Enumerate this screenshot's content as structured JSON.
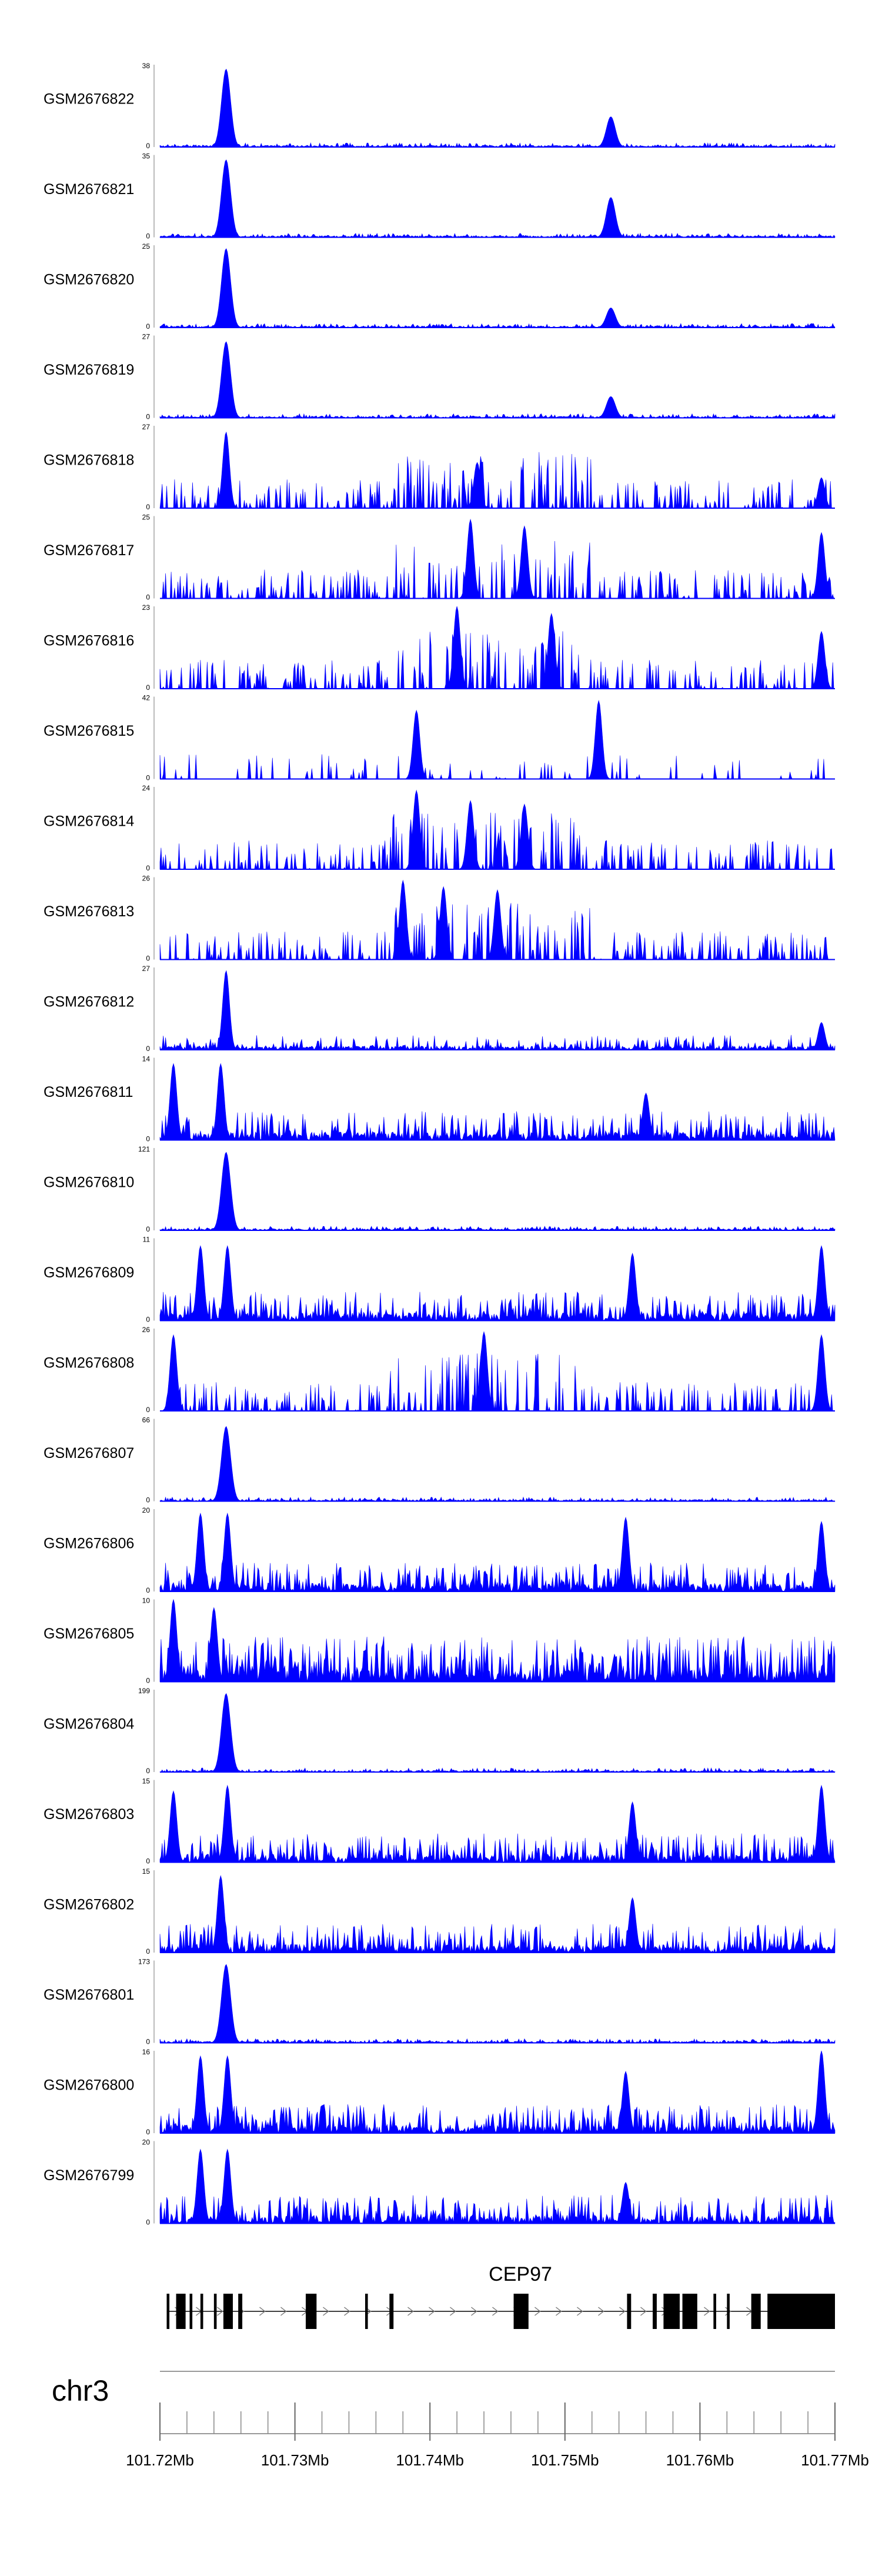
{
  "chart_data": {
    "type": "area",
    "chromosome": "chr3",
    "region_mb": [
      101.72,
      101.77
    ],
    "color": "#0000ff",
    "tracks": [
      {
        "name": "GSM2676822",
        "ymax": 38,
        "ymin": 0,
        "peaks": [
          [
            101.7249,
            36
          ],
          [
            101.7534,
            14
          ]
        ],
        "profile": "sparse_hi"
      },
      {
        "name": "GSM2676821",
        "ymax": 35,
        "ymin": 0,
        "peaks": [
          [
            101.7249,
            33
          ],
          [
            101.7534,
            17
          ]
        ],
        "profile": "sparse_hi"
      },
      {
        "name": "GSM2676820",
        "ymax": 25,
        "ymin": 0,
        "peaks": [
          [
            101.7249,
            24
          ],
          [
            101.7534,
            6
          ]
        ],
        "profile": "sparse_hi"
      },
      {
        "name": "GSM2676819",
        "ymax": 27,
        "ymin": 0,
        "peaks": [
          [
            101.7249,
            25
          ],
          [
            101.7534,
            7
          ]
        ],
        "profile": "sparse_hi"
      },
      {
        "name": "GSM2676818",
        "ymax": 27,
        "ymin": 0,
        "peaks": [
          [
            101.7249,
            25
          ],
          [
            101.7435,
            15
          ],
          [
            101.769,
            10
          ]
        ],
        "profile": "broad"
      },
      {
        "name": "GSM2676817",
        "ymax": 25,
        "ymin": 0,
        "peaks": [
          [
            101.743,
            24
          ],
          [
            101.747,
            22
          ],
          [
            101.769,
            20
          ]
        ],
        "profile": "broad"
      },
      {
        "name": "GSM2676816",
        "ymax": 23,
        "ymin": 0,
        "peaks": [
          [
            101.742,
            23
          ],
          [
            101.749,
            21
          ],
          [
            101.769,
            16
          ]
        ],
        "profile": "broad"
      },
      {
        "name": "GSM2676815",
        "ymax": 42,
        "ymin": 0,
        "peaks": [
          [
            101.739,
            35
          ],
          [
            101.7525,
            40
          ]
        ],
        "profile": "triangles"
      },
      {
        "name": "GSM2676814",
        "ymax": 24,
        "ymin": 0,
        "peaks": [
          [
            101.739,
            23
          ],
          [
            101.743,
            20
          ],
          [
            101.747,
            19
          ]
        ],
        "profile": "broad"
      },
      {
        "name": "GSM2676813",
        "ymax": 26,
        "ymin": 0,
        "peaks": [
          [
            101.738,
            25
          ],
          [
            101.741,
            23
          ],
          [
            101.745,
            22
          ]
        ],
        "profile": "broad"
      },
      {
        "name": "GSM2676812",
        "ymax": 27,
        "ymin": 0,
        "peaks": [
          [
            101.7249,
            26
          ],
          [
            101.769,
            9
          ]
        ],
        "profile": "mid"
      },
      {
        "name": "GSM2676811",
        "ymax": 14,
        "ymin": 0,
        "peaks": [
          [
            101.721,
            13
          ],
          [
            101.7245,
            13
          ],
          [
            101.756,
            8
          ]
        ],
        "profile": "dense"
      },
      {
        "name": "GSM2676810",
        "ymax": 121,
        "ymin": 0,
        "peaks": [
          [
            101.7249,
            115
          ]
        ],
        "profile": "sparse_hi"
      },
      {
        "name": "GSM2676809",
        "ymax": 11,
        "ymin": 0,
        "peaks": [
          [
            101.723,
            10
          ],
          [
            101.725,
            10
          ],
          [
            101.755,
            9
          ],
          [
            101.769,
            10
          ]
        ],
        "profile": "dense"
      },
      {
        "name": "GSM2676808",
        "ymax": 26,
        "ymin": 0,
        "peaks": [
          [
            101.721,
            24
          ],
          [
            101.744,
            25
          ],
          [
            101.769,
            24
          ]
        ],
        "profile": "broad"
      },
      {
        "name": "GSM2676807",
        "ymax": 66,
        "ymin": 0,
        "peaks": [
          [
            101.7249,
            60
          ]
        ],
        "profile": "sparse_hi"
      },
      {
        "name": "GSM2676806",
        "ymax": 20,
        "ymin": 0,
        "peaks": [
          [
            101.723,
            19
          ],
          [
            101.725,
            19
          ],
          [
            101.7545,
            18
          ],
          [
            101.769,
            17
          ]
        ],
        "profile": "dense"
      },
      {
        "name": "GSM2676805",
        "ymax": 10,
        "ymin": 0,
        "peaks": [
          [
            101.721,
            10
          ],
          [
            101.724,
            9
          ]
        ],
        "profile": "dense_uniform"
      },
      {
        "name": "GSM2676804",
        "ymax": 199,
        "ymin": 0,
        "peaks": [
          [
            101.7249,
            190
          ]
        ],
        "profile": "sparse_hi"
      },
      {
        "name": "GSM2676803",
        "ymax": 15,
        "ymin": 0,
        "peaks": [
          [
            101.721,
            13
          ],
          [
            101.725,
            14
          ],
          [
            101.755,
            11
          ],
          [
            101.769,
            14
          ]
        ],
        "profile": "dense"
      },
      {
        "name": "GSM2676802",
        "ymax": 15,
        "ymin": 0,
        "peaks": [
          [
            101.7245,
            14
          ],
          [
            101.755,
            10
          ]
        ],
        "profile": "dense"
      },
      {
        "name": "GSM2676801",
        "ymax": 173,
        "ymin": 0,
        "peaks": [
          [
            101.7249,
            165
          ]
        ],
        "profile": "sparse_hi"
      },
      {
        "name": "GSM2676800",
        "ymax": 16,
        "ymin": 0,
        "peaks": [
          [
            101.723,
            15
          ],
          [
            101.725,
            15
          ],
          [
            101.7545,
            12
          ],
          [
            101.769,
            16
          ]
        ],
        "profile": "dense"
      },
      {
        "name": "GSM2676799",
        "ymax": 20,
        "ymin": 0,
        "peaks": [
          [
            101.723,
            18
          ],
          [
            101.725,
            18
          ],
          [
            101.7545,
            10
          ]
        ],
        "profile": "dense"
      }
    ],
    "gene": {
      "name": "CEP97",
      "strand": "+",
      "start_mb": 101.7205,
      "end_mb": 101.77,
      "exons": [
        [
          101.7205,
          101.7207
        ],
        [
          101.7212,
          101.7219
        ],
        [
          101.7222,
          101.7224
        ],
        [
          101.723,
          101.7232
        ],
        [
          101.724,
          101.7242
        ],
        [
          101.7247,
          101.7254
        ],
        [
          101.7258,
          101.7261
        ],
        [
          101.7308,
          101.7316
        ],
        [
          101.7352,
          101.7354
        ],
        [
          101.737,
          101.7373
        ],
        [
          101.7462,
          101.7473
        ],
        [
          101.7546,
          101.7549
        ],
        [
          101.7565,
          101.7568
        ],
        [
          101.7573,
          101.7585
        ],
        [
          101.7587,
          101.7598
        ],
        [
          101.761,
          101.7612
        ],
        [
          101.762,
          101.7622
        ],
        [
          101.7638,
          101.7645
        ],
        [
          101.765,
          101.77
        ]
      ]
    },
    "axis": {
      "ticks": [
        "101.72Mb",
        "101.73Mb",
        "101.74Mb",
        "101.75Mb",
        "101.76Mb",
        "101.77Mb"
      ],
      "tick_values": [
        101.72,
        101.73,
        101.74,
        101.75,
        101.76,
        101.77
      ],
      "minor_step": 0.002
    }
  }
}
